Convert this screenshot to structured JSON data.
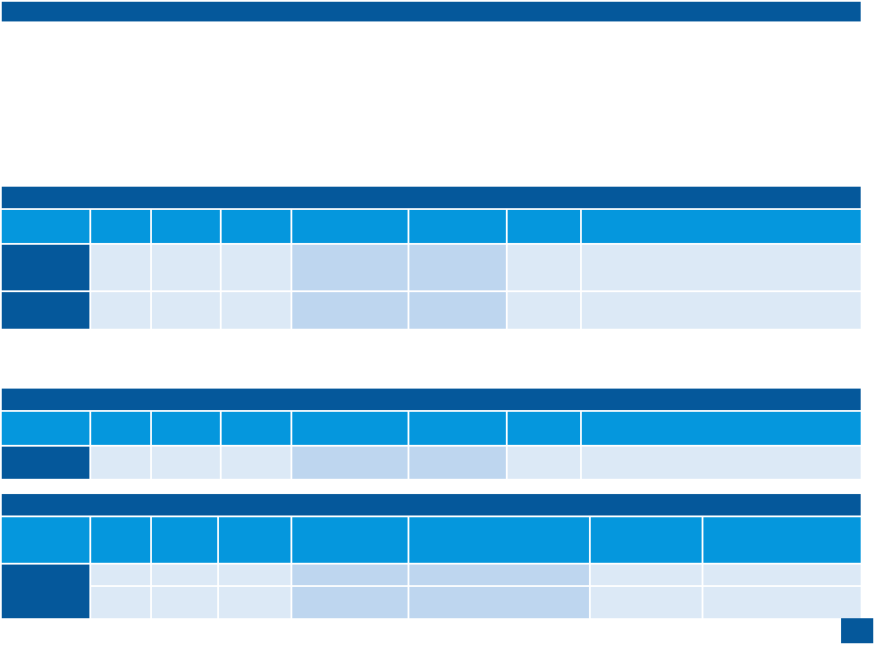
{
  "slide": {
    "title": "",
    "page_number": ""
  },
  "table1": {
    "title": "",
    "headers": [
      "",
      "",
      "",
      "",
      "",
      "",
      "",
      ""
    ],
    "rows": [
      [
        "",
        "",
        "",
        "",
        "",
        "",
        "",
        ""
      ],
      [
        "",
        "",
        "",
        "",
        "",
        "",
        "",
        ""
      ]
    ]
  },
  "table2": {
    "title": "",
    "headers": [
      "",
      "",
      "",
      "",
      "",
      "",
      "",
      ""
    ],
    "rows": [
      [
        "",
        "",
        "",
        "",
        "",
        "",
        "",
        ""
      ]
    ]
  },
  "table3": {
    "title": "",
    "headers": [
      "",
      "",
      "",
      "",
      "",
      "",
      "",
      ""
    ],
    "rows": [
      [
        "",
        "",
        "",
        "",
        "",
        "",
        "",
        ""
      ],
      [
        "",
        "",
        "",
        "",
        "",
        "",
        "",
        ""
      ]
    ]
  },
  "colors": {
    "dark_blue": "#05589b",
    "header_blue": "#0597dd",
    "light_cell": "#dce9f6",
    "highlight_cell": "#bed6ef"
  }
}
